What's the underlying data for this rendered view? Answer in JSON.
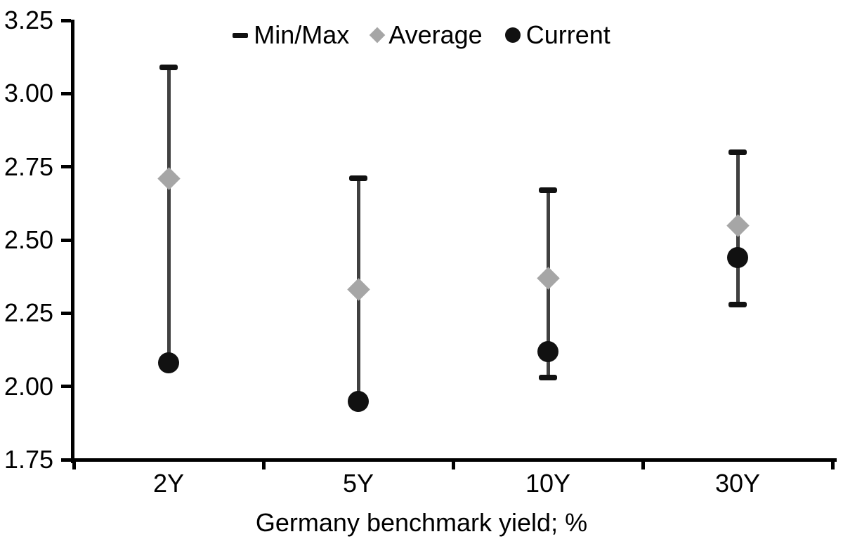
{
  "chart_data": {
    "type": "scatter",
    "subtype": "min-max-range-with-markers",
    "title": "",
    "xlabel": "Germany benchmark yield; %",
    "ylabel": "",
    "categories": [
      "2Y",
      "5Y",
      "10Y",
      "30Y"
    ],
    "series": [
      {
        "name": "Min/Max",
        "marker": "dash",
        "max": [
          3.09,
          2.71,
          2.67,
          2.8
        ],
        "min": [
          2.08,
          1.95,
          2.03,
          2.28
        ]
      },
      {
        "name": "Average",
        "marker": "diamond",
        "values": [
          2.71,
          2.33,
          2.37,
          2.55
        ]
      },
      {
        "name": "Current",
        "marker": "circle",
        "values": [
          2.08,
          1.95,
          2.12,
          2.44
        ]
      }
    ],
    "ylim": [
      1.75,
      3.25
    ],
    "ytick_step": 0.25,
    "ytick_labels": [
      "1.75",
      "2.00",
      "2.25",
      "2.50",
      "2.75",
      "3.00",
      "3.25"
    ],
    "grid": false,
    "legend_position": "top-center"
  },
  "legend": {
    "items": [
      {
        "label": "Min/Max",
        "marker": "dash-icon"
      },
      {
        "label": "Average",
        "marker": "diamond-icon"
      },
      {
        "label": "Current",
        "marker": "circle-icon"
      }
    ]
  },
  "colors": {
    "background": "#ffffff",
    "axis": "#000000",
    "text": "#000000",
    "whisker_line": "#404040",
    "min_max_cap": "#111111",
    "average_marker": "#a6a6a6",
    "current_marker": "#111111"
  }
}
